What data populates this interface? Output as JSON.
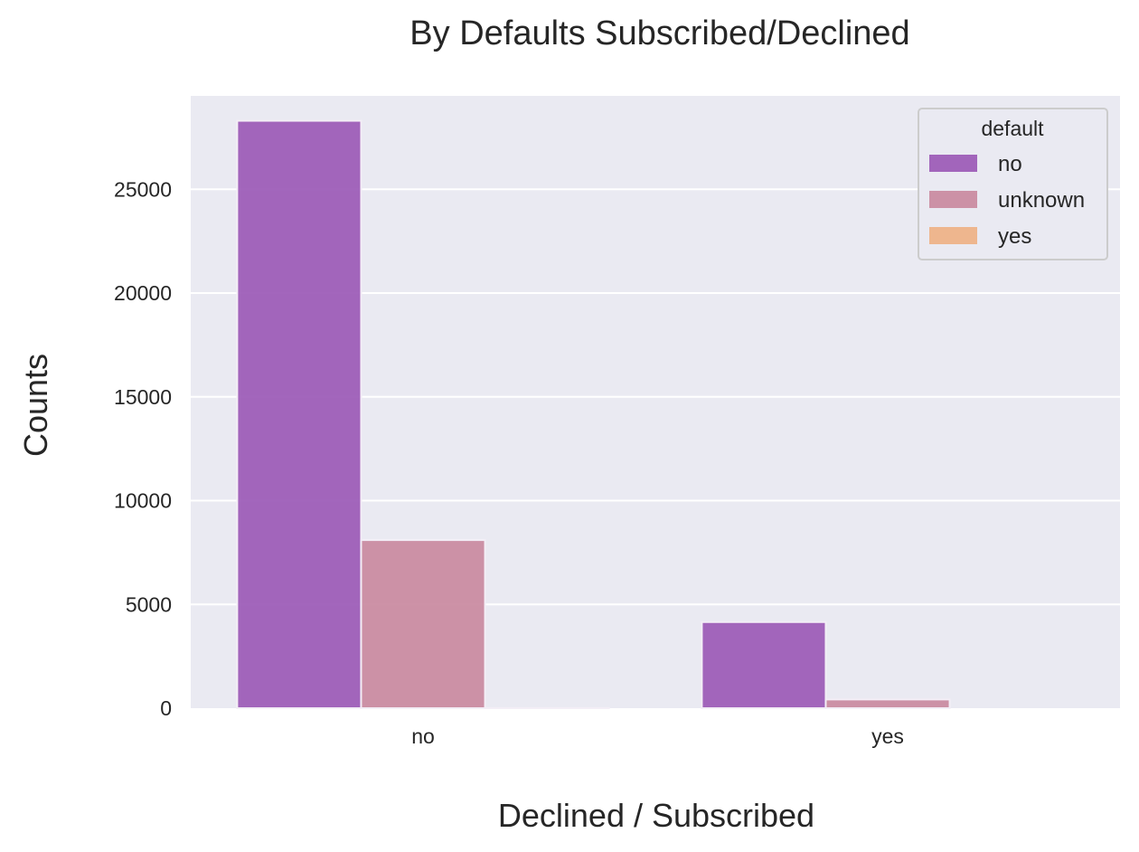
{
  "chart_data": {
    "type": "bar",
    "title": "By Defaults Subscribed/Declined",
    "xlabel": "Declined / Subscribed",
    "ylabel": "Counts",
    "categories": [
      "no",
      "yes"
    ],
    "series": [
      {
        "name": "no",
        "color": "#9b59b6",
        "values": [
          28300,
          4150
        ]
      },
      {
        "name": "unknown",
        "color": "#c9899f",
        "values": [
          8100,
          420
        ]
      },
      {
        "name": "yes",
        "color": "#eeb186",
        "values": [
          3,
          0
        ]
      }
    ],
    "ylim": [
      0,
      29500
    ],
    "yticks": [
      0,
      5000,
      10000,
      15000,
      20000,
      25000
    ],
    "grid": true,
    "legend": {
      "title": "default",
      "position": "top-right"
    }
  }
}
